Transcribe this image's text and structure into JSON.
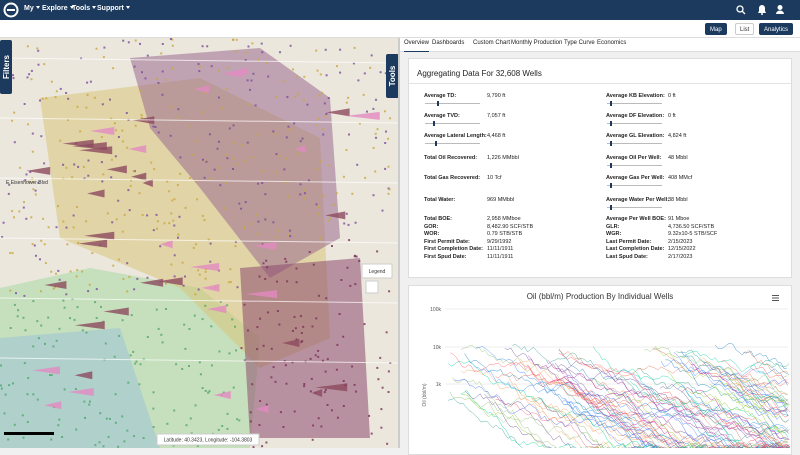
{
  "nav": {
    "menu": [
      "My",
      "Explore",
      "Tools",
      "Support"
    ]
  },
  "view_buttons": [
    "Map",
    "List",
    "Analytics"
  ],
  "tabs": [
    "Overview",
    "Dashboards",
    "Custom Chart",
    "Monthly Production",
    "Type Curve",
    "Economics"
  ],
  "map": {
    "filters": "Filters",
    "tools": "Tools",
    "legend": "Legend",
    "coordinates": "Latitude: 40.3423, Longitude: -104.3803",
    "places": [
      "E Eisenhower Blvd"
    ]
  },
  "summary": {
    "title": "Aggregating Data For 32,608 Wells",
    "left": [
      [
        "Average TD:",
        "9,790 ft"
      ],
      [
        "Average TVD:",
        "7,057 ft"
      ],
      [
        "Average Lateral Length:",
        "4,468 ft"
      ],
      [
        "Total Oil Recovered:",
        "1,226 MMbbl"
      ],
      [
        "Total Gas Recovered:",
        "10 Tcf"
      ],
      [
        "Total Water:",
        "969 MMbbl"
      ],
      [
        "Total BOE:",
        "2,958 MMboe"
      ],
      [
        "GOR:",
        "8,482.90 SCF/STB"
      ],
      [
        "WOR:",
        "0.79 STB/STB"
      ],
      [
        "First Permit Date:",
        "9/29/1992"
      ],
      [
        "First Completion Date:",
        "11/11/1911"
      ],
      [
        "First Spud Date:",
        "11/11/1911"
      ]
    ],
    "right": [
      [
        "Average KB Elevation:",
        "0 ft"
      ],
      [
        "Average DF Elevation:",
        "0 ft"
      ],
      [
        "Average GL Elevation:",
        "4,824 ft"
      ],
      [
        "Average Oil Per Well:",
        "48 Mbbl"
      ],
      [
        "Average Gas Per Well:",
        "408 MMcf"
      ],
      [
        "Average Water Per Well:",
        "38 Mbbl"
      ],
      [
        "Average Per Well BOE:",
        "91 Mboe"
      ],
      [
        "GLR:",
        "4,736.50 SCF/STB"
      ],
      [
        "WGR:",
        "9.32x10-5 STB/SCF"
      ],
      [
        "Last Permit Date:",
        "2/15/2023"
      ],
      [
        "Last Completion Date:",
        "12/15/2022"
      ],
      [
        "Last Spud Date:",
        "2/17/2023"
      ]
    ]
  },
  "chart": {
    "title": "Oil (bbl/m) Production By Individual Wells",
    "y_axis_title": "Oil (bbl/m)",
    "yticks": [
      "100k",
      "10k",
      "1k"
    ]
  }
}
